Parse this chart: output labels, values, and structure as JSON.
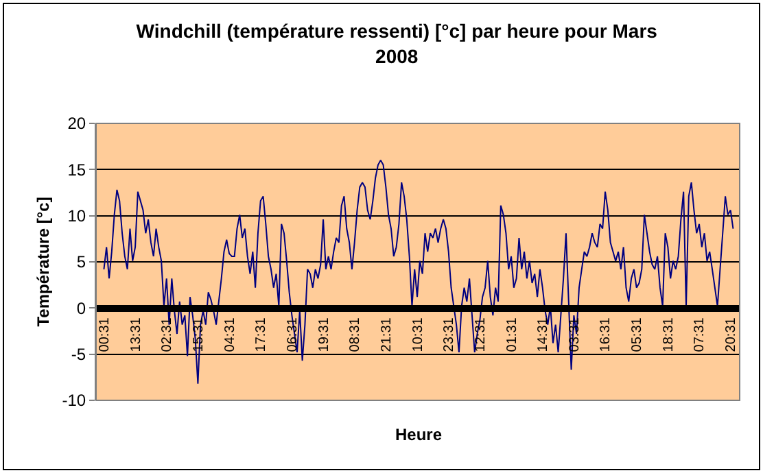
{
  "chart_data": {
    "type": "line",
    "title": "Windchill (température ressenti) [°c] par heure pour Mars\n2008",
    "xlabel": "Heure",
    "ylabel": "Température [°c]",
    "categories": [
      "00:31",
      null,
      null,
      null,
      null,
      null,
      null,
      null,
      null,
      null,
      null,
      null,
      "13:31",
      null,
      null,
      null,
      null,
      null,
      null,
      null,
      null,
      null,
      null,
      null,
      "02:31",
      null,
      null,
      null,
      null,
      null,
      null,
      null,
      null,
      null,
      null,
      null,
      "15:31",
      null,
      null,
      null,
      null,
      null,
      null,
      null,
      null,
      null,
      null,
      null,
      "04:31",
      null,
      null,
      null,
      null,
      null,
      null,
      null,
      null,
      null,
      null,
      null,
      "17:31",
      null,
      null,
      null,
      null,
      null,
      null,
      null,
      null,
      null,
      null,
      null,
      "06:31",
      null,
      null,
      null,
      null,
      null,
      null,
      null,
      null,
      null,
      null,
      null,
      "19:31",
      null,
      null,
      null,
      null,
      null,
      null,
      null,
      null,
      null,
      null,
      null,
      "08:31",
      null,
      null,
      null,
      null,
      null,
      null,
      null,
      null,
      null,
      null,
      null,
      "21:31",
      null,
      null,
      null,
      null,
      null,
      null,
      null,
      null,
      null,
      null,
      null,
      "10:31",
      null,
      null,
      null,
      null,
      null,
      null,
      null,
      null,
      null,
      null,
      null,
      "23:31",
      null,
      null,
      null,
      null,
      null,
      null,
      null,
      null,
      null,
      null,
      null,
      "12:31",
      null,
      null,
      null,
      null,
      null,
      null,
      null,
      null,
      null,
      null,
      null,
      "01:31",
      null,
      null,
      null,
      null,
      null,
      null,
      null,
      null,
      null,
      null,
      null,
      "14:31",
      null,
      null,
      null,
      null,
      null,
      null,
      null,
      null,
      null,
      null,
      null,
      "03:31",
      null,
      null,
      null,
      null,
      null,
      null,
      null,
      null,
      null,
      null,
      null,
      "16:31",
      null,
      null,
      null,
      null,
      null,
      null,
      null,
      null,
      null,
      null,
      null,
      "05:31",
      null,
      null,
      null,
      null,
      null,
      null,
      null,
      null,
      null,
      null,
      null,
      "18:31",
      null,
      null,
      null,
      null,
      null,
      null,
      null,
      null,
      null,
      null,
      null,
      "07:31",
      null,
      null,
      null,
      null,
      null,
      null,
      null,
      null,
      null,
      null,
      null,
      "20:31",
      null
    ],
    "series": [
      {
        "color": "#000080",
        "values": [
          4.2,
          6.6,
          3.2,
          6.1,
          10.1,
          12.8,
          11.6,
          8.1,
          5.6,
          4.2,
          8.6,
          5.1,
          6.6,
          12.6,
          11.6,
          10.6,
          8.1,
          9.6,
          7.1,
          5.6,
          8.6,
          6.6,
          5.1,
          0.2,
          3.2,
          -1.8,
          3.2,
          -0.3,
          -2.8,
          0.7,
          -1.8,
          -0.8,
          -5.2,
          1.2,
          -0.8,
          -3.3,
          -8.2,
          -1.8,
          -0.3,
          -1.8,
          1.7,
          0.9,
          -0.3,
          -1.8,
          0.7,
          3.2,
          6.1,
          7.4,
          5.9,
          5.6,
          5.6,
          8.6,
          10.1,
          7.6,
          8.6,
          5.6,
          3.7,
          6.1,
          2.2,
          8.1,
          11.6,
          12.1,
          9.1,
          5.6,
          4.2,
          2.2,
          3.7,
          0.2,
          9.1,
          8.1,
          5.1,
          1.7,
          -0.8,
          -2.8,
          -4.8,
          -0.3,
          -5.7,
          -1.8,
          4.2,
          3.7,
          2.2,
          4.2,
          3.2,
          4.7,
          9.6,
          4.2,
          5.6,
          4.2,
          6.1,
          7.6,
          7.1,
          11.1,
          12.1,
          8.6,
          7.1,
          4.2,
          7.1,
          10.6,
          13.1,
          13.6,
          13.1,
          10.6,
          9.6,
          11.6,
          14.1,
          15.5,
          16.0,
          15.5,
          13.1,
          10.1,
          8.6,
          5.6,
          6.6,
          9.1,
          13.6,
          12.1,
          9.6,
          5.6,
          0.2,
          4.2,
          1.2,
          5.1,
          3.7,
          8.1,
          6.1,
          8.1,
          7.6,
          8.6,
          7.1,
          8.6,
          9.6,
          8.6,
          6.1,
          2.2,
          0.2,
          -1.8,
          -4.8,
          0.2,
          2.2,
          0.7,
          3.2,
          -0.8,
          -4.8,
          -2.8,
          -1.3,
          1.2,
          2.2,
          5.1,
          1.2,
          -0.8,
          2.2,
          0.7,
          11.1,
          10.1,
          8.1,
          4.2,
          5.6,
          2.2,
          3.2,
          7.6,
          4.2,
          6.1,
          3.2,
          5.1,
          2.7,
          3.7,
          1.2,
          4.2,
          2.2,
          -0.3,
          -1.8,
          0.2,
          -3.8,
          -1.8,
          -4.8,
          -0.8,
          3.2,
          8.1,
          0.7,
          -6.7,
          -0.8,
          -2.8,
          2.2,
          4.2,
          6.1,
          5.6,
          6.6,
          8.1,
          7.1,
          6.6,
          9.1,
          8.6,
          12.6,
          10.6,
          7.1,
          6.1,
          5.1,
          6.1,
          4.2,
          6.6,
          2.2,
          0.7,
          3.2,
          4.2,
          2.2,
          2.7,
          4.2,
          10.1,
          8.1,
          6.1,
          4.7,
          4.2,
          5.6,
          2.2,
          0.2,
          8.1,
          6.6,
          3.2,
          5.1,
          4.2,
          5.6,
          9.6,
          12.6,
          0.2,
          12.1,
          13.6,
          10.6,
          8.1,
          9.1,
          6.6,
          8.1,
          5.1,
          6.1,
          4.2,
          2.2,
          0.2,
          4.2,
          8.1,
          12.1,
          10.1,
          10.6,
          8.6
        ]
      }
    ],
    "ylim": [
      -10,
      20
    ],
    "yticks": [
      -10,
      -5,
      0,
      5,
      10,
      15,
      20
    ],
    "grid": "y",
    "marker": "none",
    "line_style": "solid"
  }
}
